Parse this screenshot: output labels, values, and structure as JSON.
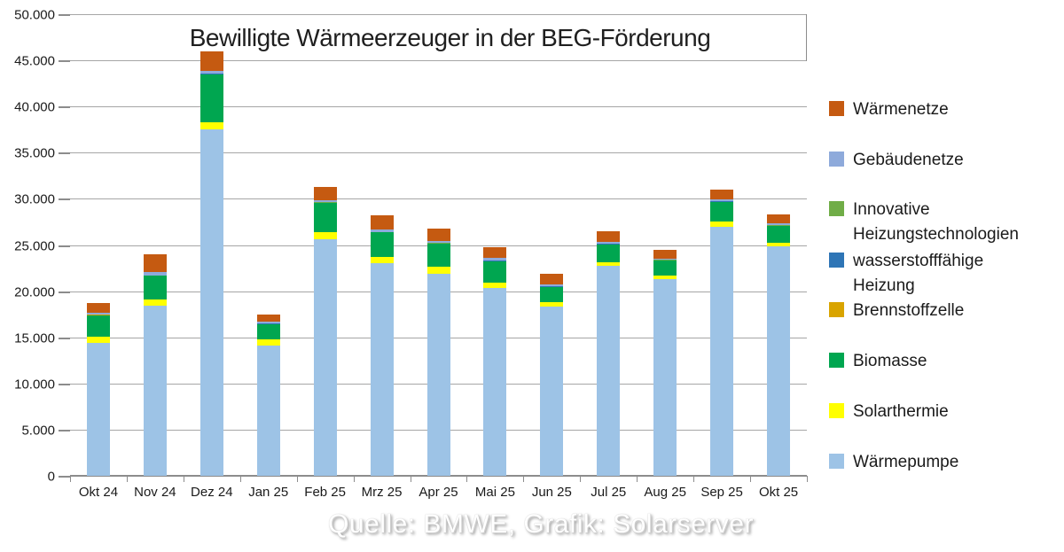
{
  "title": "Bewilligte Wärmeerzeuger in der BEG-Förderung",
  "caption": "Quelle: BMWE, Grafik: Solarserver",
  "colors": {
    "waermenetze": "#C55A11",
    "gebaeudenetze": "#8EAADB",
    "innovative": "#70AD47",
    "wasserstoff": "#2E75B6",
    "brennstoffzelle": "#D9A400",
    "biomasse": "#00A650",
    "solarthermie": "#FFFF00",
    "waermepumpe": "#9DC3E6",
    "gridline": "#A6A6A6"
  },
  "legend": [
    {
      "lines": [
        "Wärmenetze"
      ],
      "color": "#C55A11"
    },
    {
      "lines": [
        "Gebäudenetze"
      ],
      "color": "#8EAADB"
    },
    {
      "lines": [
        "Innovative",
        "Heizungstechnologien"
      ],
      "color": "#70AD47"
    },
    {
      "lines": [
        "wasserstofffähige",
        "Heizung"
      ],
      "color": "#2E75B6"
    },
    {
      "lines": [
        "Brennstoffzelle"
      ],
      "color": "#D9A400"
    },
    {
      "lines": [
        "Biomasse"
      ],
      "color": "#00A650"
    },
    {
      "lines": [
        "Solarthermie"
      ],
      "color": "#FFFF00"
    },
    {
      "lines": [
        "Wärmepumpe"
      ],
      "color": "#9DC3E6"
    }
  ],
  "chart_data": {
    "type": "bar",
    "stacked": true,
    "title": "Bewilligte Wärmeerzeuger in der BEG-Förderung",
    "xlabel": "",
    "ylabel": "",
    "ylim": [
      0,
      50000
    ],
    "ytick_step": 5000,
    "ytick_labels": [
      "0",
      "5.000",
      "10.000",
      "15.000",
      "20.000",
      "25.000",
      "30.000",
      "35.000",
      "40.000",
      "45.000",
      "50.000"
    ],
    "grid": true,
    "legend_position": "right",
    "categories": [
      "Okt 24",
      "Nov 24",
      "Dez 24",
      "Jan 25",
      "Feb 25",
      "Mrz 25",
      "Apr 25",
      "Mai 25",
      "Jun 25",
      "Jul 25",
      "Aug 25",
      "Sep 25",
      "Okt 25"
    ],
    "series": [
      {
        "name": "Wärmepumpe",
        "color": "#9DC3E6",
        "values": [
          14400,
          18400,
          37500,
          14100,
          25650,
          23050,
          21900,
          20300,
          18300,
          22700,
          21300,
          27000,
          24900
        ]
      },
      {
        "name": "Solarthermie",
        "color": "#FFFF00",
        "values": [
          640,
          700,
          750,
          640,
          700,
          700,
          730,
          670,
          480,
          440,
          400,
          500,
          380
        ]
      },
      {
        "name": "Biomasse",
        "color": "#00A650",
        "values": [
          2370,
          2550,
          5250,
          1700,
          3200,
          2600,
          2500,
          2250,
          1680,
          1930,
          1600,
          2150,
          1750
        ]
      },
      {
        "name": "Brennstoffzelle",
        "color": "#D9A400",
        "values": [
          20,
          20,
          20,
          20,
          20,
          20,
          20,
          20,
          20,
          20,
          20,
          20,
          20
        ]
      },
      {
        "name": "wasserstofffähige Heizung",
        "color": "#2E75B6",
        "values": [
          40,
          40,
          40,
          40,
          40,
          40,
          40,
          40,
          40,
          40,
          40,
          40,
          40
        ]
      },
      {
        "name": "Innovative Heizungstechnologien",
        "color": "#70AD47",
        "values": [
          30,
          30,
          30,
          30,
          30,
          30,
          30,
          30,
          30,
          30,
          30,
          30,
          30
        ]
      },
      {
        "name": "Gebäudenetze",
        "color": "#8EAADB",
        "values": [
          200,
          350,
          250,
          200,
          250,
          250,
          250,
          280,
          170,
          150,
          150,
          250,
          200
        ]
      },
      {
        "name": "Wärmenetze",
        "color": "#C55A11",
        "values": [
          1030,
          1870,
          2100,
          730,
          1450,
          1500,
          1300,
          1150,
          1200,
          1200,
          900,
          1000,
          1000
        ]
      }
    ],
    "totals_approx": [
      18730,
      23960,
      45940,
      17460,
      31340,
      28190,
      26770,
      24740,
      21920,
      26510,
      24440,
      30990,
      28320
    ]
  }
}
